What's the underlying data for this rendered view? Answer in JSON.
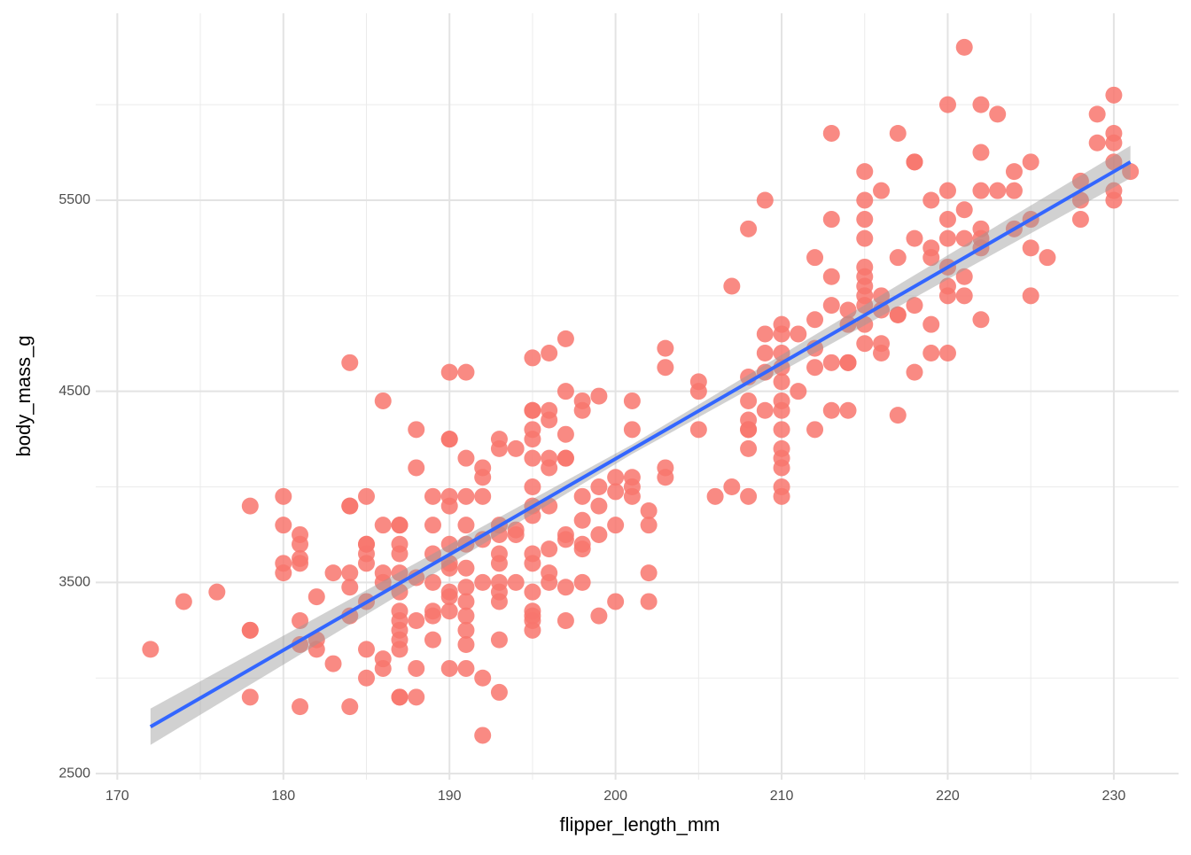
{
  "chart_data": {
    "type": "scatter",
    "x_label": "flipper_length_mm",
    "y_label": "body_mass_g",
    "xlim": [
      168.7,
      233.9
    ],
    "ylim": [
      2468,
      6478
    ],
    "xticks": [
      170,
      180,
      190,
      200,
      210,
      220,
      230
    ],
    "yticks": [
      2500,
      3500,
      4500,
      5500
    ],
    "minor_xticks": [
      175,
      185,
      195,
      205,
      215,
      225
    ],
    "minor_yticks": [
      3000,
      4000,
      5000,
      6000
    ],
    "grid": true,
    "color": "#f8766d",
    "x": [
      172,
      174,
      176,
      178,
      178,
      178,
      178,
      180,
      180,
      180,
      180,
      181,
      181,
      181,
      181,
      181,
      181,
      181,
      182,
      182,
      182,
      183,
      183,
      184,
      184,
      184,
      184,
      184,
      184,
      184,
      185,
      185,
      185,
      185,
      185,
      185,
      185,
      185,
      186,
      186,
      186,
      186,
      186,
      186,
      187,
      187,
      187,
      187,
      187,
      187,
      187,
      187,
      187,
      187,
      187,
      187,
      187,
      188,
      188,
      188,
      188,
      188,
      188,
      189,
      189,
      189,
      189,
      189,
      189,
      189,
      190,
      190,
      190,
      190,
      190,
      190,
      190,
      190,
      190,
      190,
      190,
      190,
      191,
      191,
      191,
      191,
      191,
      191,
      191,
      191,
      191,
      191,
      191,
      191,
      192,
      192,
      192,
      192,
      192,
      192,
      192,
      193,
      193,
      193,
      193,
      193,
      193,
      193,
      193,
      193,
      193,
      193,
      194,
      194,
      194,
      194,
      195,
      195,
      195,
      195,
      195,
      195,
      195,
      195,
      195,
      195,
      195,
      195,
      195,
      195,
      195,
      195,
      196,
      196,
      196,
      196,
      196,
      196,
      196,
      196,
      196,
      197,
      197,
      197,
      197,
      197,
      197,
      197,
      197,
      197,
      198,
      198,
      198,
      198,
      198,
      198,
      198,
      199,
      199,
      199,
      199,
      199,
      200,
      200,
      200,
      200,
      201,
      201,
      201,
      201,
      201,
      202,
      202,
      202,
      202,
      203,
      203,
      203,
      203,
      205,
      205,
      205,
      206,
      207,
      207,
      208,
      208,
      208,
      208,
      208,
      208,
      208,
      208,
      209,
      209,
      209,
      209,
      209,
      210,
      210,
      210,
      210,
      210,
      210,
      210,
      210,
      210,
      210,
      210,
      210,
      210,
      211,
      211,
      212,
      212,
      212,
      212,
      212,
      213,
      213,
      213,
      213,
      213,
      213,
      214,
      214,
      214,
      214,
      214,
      215,
      215,
      215,
      215,
      215,
      215,
      215,
      215,
      215,
      215,
      215,
      216,
      216,
      216,
      216,
      216,
      217,
      217,
      217,
      217,
      217,
      218,
      218,
      218,
      218,
      218,
      219,
      219,
      219,
      219,
      219,
      220,
      220,
      220,
      220,
      220,
      220,
      220,
      220,
      221,
      221,
      221,
      221,
      221,
      222,
      222,
      222,
      222,
      222,
      222,
      222,
      223,
      223,
      224,
      224,
      224,
      225,
      225,
      225,
      225,
      226,
      228,
      228,
      228,
      229,
      229,
      230,
      230,
      230,
      230,
      230,
      230,
      231
    ],
    "values": [
      3150,
      3400,
      3450,
      3900,
      3250,
      3250,
      2900,
      3950,
      3800,
      3600,
      3550,
      3750,
      3700,
      3625,
      3600,
      3300,
      3175,
      2850,
      3425,
      3200,
      3150,
      3550,
      3075,
      4650,
      3900,
      3900,
      3550,
      3475,
      3325,
      2850,
      3950,
      3700,
      3700,
      3650,
      3600,
      3400,
      3150,
      3000,
      4450,
      3800,
      3550,
      3500,
      3100,
      3050,
      3800,
      3800,
      3700,
      3650,
      3550,
      3450,
      3350,
      3300,
      3250,
      3200,
      3150,
      2900,
      2900,
      4300,
      4100,
      3525,
      3300,
      3050,
      2900,
      3950,
      3800,
      3650,
      3500,
      3350,
      3325,
      3200,
      4600,
      4250,
      4250,
      3950,
      3900,
      3700,
      3600,
      3575,
      3450,
      3425,
      3350,
      3050,
      4600,
      4150,
      3950,
      3800,
      3700,
      3575,
      3475,
      3400,
      3325,
      3250,
      3175,
      3050,
      4100,
      4050,
      3950,
      3725,
      3500,
      3000,
      2700,
      4250,
      4200,
      3800,
      3750,
      3650,
      3600,
      3500,
      3450,
      3400,
      3200,
      2925,
      4200,
      3775,
      3750,
      3500,
      4675,
      4400,
      4400,
      4300,
      4250,
      4150,
      4000,
      3900,
      3850,
      3650,
      3600,
      3450,
      3350,
      3325,
      3300,
      3250,
      4700,
      4400,
      4350,
      4150,
      4100,
      3900,
      3675,
      3550,
      3500,
      4775,
      4500,
      4275,
      4150,
      4150,
      3750,
      3725,
      3475,
      3300,
      4450,
      4400,
      3950,
      3825,
      3700,
      3675,
      3500,
      4475,
      4000,
      3900,
      3750,
      3325,
      4050,
      3975,
      3800,
      3400,
      4450,
      4300,
      4050,
      4000,
      3950,
      3875,
      3800,
      3550,
      3400,
      4725,
      4625,
      4100,
      4050,
      4550,
      4500,
      4300,
      3950,
      5050,
      4000,
      5350,
      4575,
      4450,
      4350,
      4300,
      4300,
      4200,
      3950,
      5500,
      4800,
      4700,
      4600,
      4400,
      4850,
      4800,
      4700,
      4625,
      4550,
      4450,
      4400,
      4300,
      4200,
      4150,
      4100,
      4000,
      3950,
      4800,
      4500,
      5200,
      4875,
      4725,
      4625,
      4300,
      5850,
      5400,
      5100,
      4950,
      4650,
      4400,
      4925,
      4850,
      4650,
      4650,
      4400,
      5650,
      5500,
      5400,
      5300,
      5150,
      5100,
      5050,
      5000,
      4950,
      4850,
      4750,
      5550,
      5000,
      4925,
      4750,
      4700,
      5850,
      5200,
      4900,
      4900,
      4375,
      5700,
      5700,
      5300,
      4950,
      4600,
      5500,
      5250,
      5200,
      4850,
      4700,
      6000,
      5550,
      5400,
      5300,
      5150,
      5050,
      5000,
      4700,
      6300,
      5450,
      5300,
      5100,
      5000,
      6000,
      5750,
      5550,
      5350,
      5300,
      5250,
      4875,
      5950,
      5550,
      5650,
      5550,
      5350,
      5700,
      5400,
      5250,
      5000,
      5200,
      5600,
      5500,
      5400,
      5950,
      5800,
      6050,
      5850,
      5800,
      5700,
      5550,
      5500,
      5650
    ],
    "fit": {
      "color": "#3366ff",
      "band_color": "#999999",
      "x": [
        172,
        201,
        231
      ],
      "values": [
        2745,
        4197,
        5700
      ],
      "lower": [
        2650,
        4172,
        5615
      ],
      "upper": [
        2840,
        4222,
        5785
      ]
    }
  }
}
